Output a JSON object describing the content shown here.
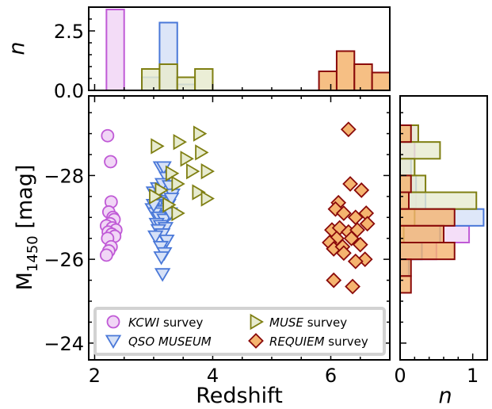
{
  "chart_data": {
    "type": "scatter",
    "main": {
      "xlabel": "Redshift",
      "ylabel": {
        "main": "M",
        "sub": "1450",
        "rest": " [mag]"
      },
      "xlim": [
        1.9,
        7.0
      ],
      "ylim": [
        -23.6,
        -29.9
      ],
      "y_inverted": true,
      "x_ticks": [
        "2",
        "4",
        "6"
      ],
      "y_ticks": [
        "−28",
        "−26",
        "−24"
      ],
      "x_tick_values": [
        2,
        4,
        6
      ],
      "y_tick_values": [
        -28,
        -26,
        -24
      ]
    },
    "top_hist": {
      "ylabel": "n",
      "ylim": [
        0,
        3.5
      ],
      "y_ticks": [
        "2.5",
        "0.0"
      ],
      "y_tick_values": [
        2.5,
        0.0
      ]
    },
    "right_hist": {
      "xlabel": "n",
      "xlim": [
        0,
        1.2
      ],
      "x_ticks": [
        "0",
        "1"
      ],
      "x_tick_values": [
        0,
        1
      ]
    },
    "legend": {
      "placement": "lower-left",
      "entries": [
        {
          "key": "kcwi",
          "italic": "KCWI",
          "rest": " survey"
        },
        {
          "key": "muse",
          "italic": "MUSE",
          "rest": " survey"
        },
        {
          "key": "qso",
          "italic": "QSO MUSEUM",
          "rest": ""
        },
        {
          "key": "requiem",
          "italic": "REQUIEM",
          "rest": " survey"
        }
      ]
    },
    "series": [
      {
        "key": "kcwi",
        "marker": "circle",
        "edge": "#c05ad6",
        "face": "#f1d6f6",
        "points": [
          [
            2.22,
            -28.95
          ],
          [
            2.27,
            -28.33
          ],
          [
            2.28,
            -27.37
          ],
          [
            2.24,
            -27.13
          ],
          [
            2.31,
            -27.0
          ],
          [
            2.33,
            -26.95
          ],
          [
            2.26,
            -26.85
          ],
          [
            2.2,
            -26.8
          ],
          [
            2.3,
            -26.75
          ],
          [
            2.36,
            -26.7
          ],
          [
            2.23,
            -26.65
          ],
          [
            2.29,
            -26.6
          ],
          [
            2.34,
            -26.55
          ],
          [
            2.22,
            -26.5
          ],
          [
            2.28,
            -26.3
          ],
          [
            2.24,
            -26.2
          ],
          [
            2.2,
            -26.1
          ]
        ]
      },
      {
        "key": "qso",
        "marker": "triangle-down",
        "edge": "#4a78d8",
        "face": "#d6e1f7",
        "points": [
          [
            3.12,
            -28.2
          ],
          [
            3.17,
            -28.2
          ],
          [
            3.22,
            -27.95
          ],
          [
            3.0,
            -27.6
          ],
          [
            3.07,
            -27.7
          ],
          [
            3.15,
            -27.8
          ],
          [
            3.27,
            -27.75
          ],
          [
            3.32,
            -27.55
          ],
          [
            3.05,
            -27.5
          ],
          [
            3.1,
            -27.4
          ],
          [
            3.2,
            -27.35
          ],
          [
            3.25,
            -27.3
          ],
          [
            2.98,
            -27.2
          ],
          [
            3.14,
            -27.15
          ],
          [
            3.02,
            -27.1
          ],
          [
            3.24,
            -27.05
          ],
          [
            3.09,
            -27.0
          ],
          [
            3.18,
            -26.95
          ],
          [
            3.05,
            -26.85
          ],
          [
            3.12,
            -26.8
          ],
          [
            3.2,
            -26.75
          ],
          [
            3.08,
            -26.7
          ],
          [
            3.15,
            -26.6
          ],
          [
            3.03,
            -26.55
          ],
          [
            3.22,
            -26.45
          ],
          [
            3.12,
            -26.3
          ],
          [
            3.18,
            -26.15
          ],
          [
            3.13,
            -26.05
          ],
          [
            3.15,
            -25.65
          ],
          [
            3.3,
            -27.45
          ],
          [
            3.0,
            -27.3
          ],
          [
            3.28,
            -27.1
          ]
        ]
      },
      {
        "key": "muse",
        "marker": "triangle-right",
        "edge": "#7f7f12",
        "face": "#e7ebcf",
        "points": [
          [
            3.77,
            -29.0
          ],
          [
            3.43,
            -28.8
          ],
          [
            3.05,
            -28.7
          ],
          [
            3.8,
            -28.55
          ],
          [
            3.55,
            -28.4
          ],
          [
            3.9,
            -28.1
          ],
          [
            3.3,
            -28.05
          ],
          [
            3.65,
            -28.1
          ],
          [
            3.4,
            -27.8
          ],
          [
            3.12,
            -27.65
          ],
          [
            3.75,
            -27.6
          ],
          [
            3.9,
            -27.45
          ],
          [
            3.02,
            -27.5
          ],
          [
            3.25,
            -27.3
          ],
          [
            3.4,
            -27.1
          ]
        ]
      },
      {
        "key": "requiem",
        "marker": "diamond",
        "edge": "#8a0a0a",
        "face": "#f5b46f",
        "points": [
          [
            6.3,
            -29.1
          ],
          [
            6.33,
            -27.8
          ],
          [
            6.52,
            -27.65
          ],
          [
            6.13,
            -27.35
          ],
          [
            6.08,
            -27.2
          ],
          [
            6.22,
            -27.1
          ],
          [
            6.42,
            -27.0
          ],
          [
            6.6,
            -27.1
          ],
          [
            6.02,
            -26.7
          ],
          [
            6.15,
            -26.75
          ],
          [
            6.3,
            -26.65
          ],
          [
            6.45,
            -26.7
          ],
          [
            6.62,
            -26.85
          ],
          [
            6.1,
            -26.5
          ],
          [
            5.98,
            -26.4
          ],
          [
            6.05,
            -26.25
          ],
          [
            6.2,
            -26.3
          ],
          [
            6.35,
            -26.5
          ],
          [
            6.5,
            -26.35
          ],
          [
            6.22,
            -26.15
          ],
          [
            6.58,
            -26.0
          ],
          [
            6.42,
            -25.95
          ],
          [
            6.05,
            -25.5
          ],
          [
            6.37,
            -25.35
          ]
        ]
      }
    ],
    "top_hist_series": [
      {
        "key": "kcwi",
        "edge": "#c05ad6",
        "face": "#f1d6f6",
        "bins": [
          [
            2.2,
            2.5,
            3.4
          ]
        ]
      },
      {
        "key": "qso",
        "edge": "#4a78d8",
        "face": "#d6e1f7",
        "bins": [
          [
            2.8,
            3.1,
            0.55
          ],
          [
            3.1,
            3.4,
            2.85
          ],
          [
            3.4,
            3.7,
            0.25
          ]
        ]
      },
      {
        "key": "muse",
        "edge": "#7f7f12",
        "face": "#e7ebcf",
        "bins": [
          [
            2.8,
            3.1,
            0.9
          ],
          [
            3.1,
            3.4,
            1.1
          ],
          [
            3.4,
            3.7,
            0.55
          ],
          [
            3.7,
            4.0,
            0.9
          ]
        ]
      },
      {
        "key": "requiem",
        "edge": "#8a0a0a",
        "face": "#f5b46f",
        "bins": [
          [
            5.8,
            6.1,
            0.8
          ],
          [
            6.1,
            6.4,
            1.65
          ],
          [
            6.4,
            6.7,
            1.1
          ],
          [
            6.7,
            7.0,
            0.75
          ]
        ]
      }
    ],
    "right_hist_series": [
      {
        "key": "kcwi",
        "edge": "#c05ad6",
        "face": "#f1d6f6",
        "bins": [
          [
            -29.2,
            -28.8,
            0.25
          ],
          [
            -28.8,
            -28.4,
            0.2
          ],
          [
            -28.4,
            -28.0,
            0.0
          ],
          [
            -28.0,
            -27.6,
            0.15
          ],
          [
            -27.6,
            -27.2,
            0.22
          ],
          [
            -27.2,
            -26.8,
            0.2
          ],
          [
            -26.8,
            -26.4,
            0.95
          ],
          [
            -26.4,
            -26.0,
            0.5
          ],
          [
            -26.0,
            -25.6,
            0.1
          ]
        ]
      },
      {
        "key": "qso",
        "edge": "#4a78d8",
        "face": "#d6e1f7",
        "bins": [
          [
            -28.4,
            -28.0,
            0.15
          ],
          [
            -28.0,
            -27.6,
            0.22
          ],
          [
            -27.6,
            -27.2,
            0.35
          ],
          [
            -27.2,
            -26.8,
            1.15
          ],
          [
            -26.8,
            -26.4,
            0.55
          ],
          [
            -26.4,
            -26.0,
            0.3
          ],
          [
            -26.0,
            -25.6,
            0.12
          ]
        ]
      },
      {
        "key": "muse",
        "edge": "#7f7f12",
        "face": "#e7ebcf",
        "bins": [
          [
            -29.2,
            -28.8,
            0.25
          ],
          [
            -28.8,
            -28.4,
            0.55
          ],
          [
            -28.4,
            -28.0,
            0.2
          ],
          [
            -28.0,
            -27.6,
            0.35
          ],
          [
            -27.6,
            -27.2,
            1.05
          ],
          [
            -27.2,
            -26.8,
            0.2
          ],
          [
            -26.8,
            -26.4,
            0.05
          ]
        ]
      },
      {
        "key": "requiem",
        "edge": "#8a0a0a",
        "face": "#f5b46f",
        "bins": [
          [
            -29.2,
            -28.8,
            0.15
          ],
          [
            -28.8,
            -28.4,
            0.0
          ],
          [
            -28.4,
            -28.0,
            0.0
          ],
          [
            -28.0,
            -27.6,
            0.15
          ],
          [
            -27.6,
            -27.2,
            0.12
          ],
          [
            -27.2,
            -26.8,
            0.75
          ],
          [
            -26.8,
            -26.4,
            0.6
          ],
          [
            -26.4,
            -26.0,
            0.75
          ],
          [
            -26.0,
            -25.6,
            0.15
          ],
          [
            -25.6,
            -25.2,
            0.15
          ]
        ]
      }
    ]
  }
}
